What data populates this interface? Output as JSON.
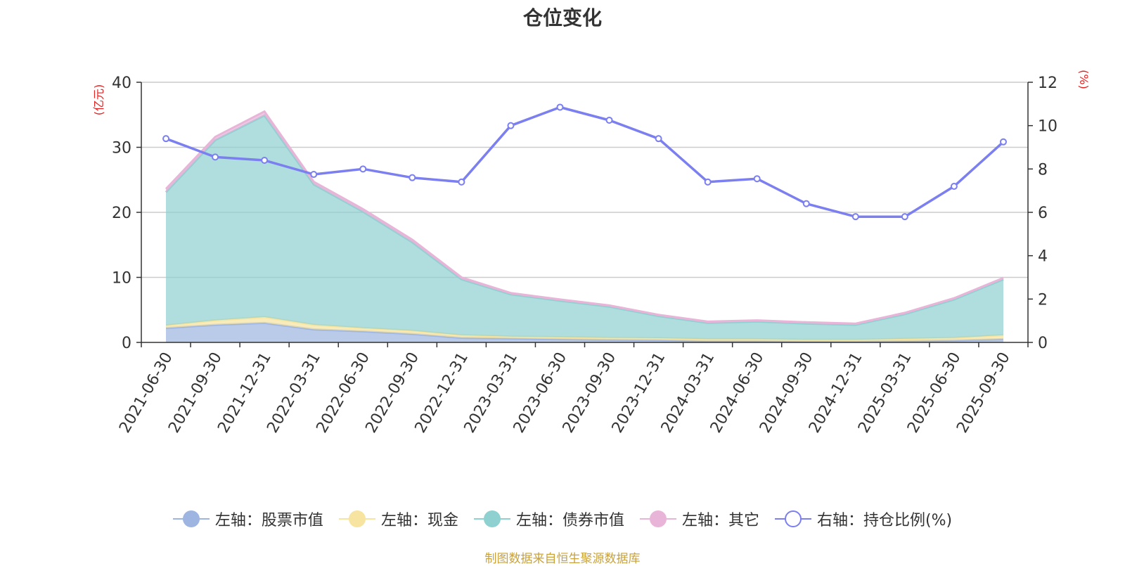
{
  "chart_data": {
    "type": "area",
    "title": "仓位变化",
    "categories": [
      "2021-06-30",
      "2021-09-30",
      "2021-12-31",
      "2022-03-31",
      "2022-06-30",
      "2022-09-30",
      "2022-12-31",
      "2023-03-31",
      "2023-06-30",
      "2023-09-30",
      "2023-12-31",
      "2024-03-31",
      "2024-06-30",
      "2024-09-30",
      "2024-12-31",
      "2025-03-31",
      "2025-06-30",
      "2025-09-30"
    ],
    "y_left": {
      "unit_label": "(亿元)",
      "ylim": [
        0,
        40
      ],
      "ticks": [
        "0",
        "10",
        "20",
        "30",
        "40"
      ]
    },
    "y_right": {
      "unit_label": "(%)",
      "ylim": [
        0,
        12
      ],
      "ticks": [
        "0",
        "2",
        "4",
        "6",
        "8",
        "10",
        "12"
      ]
    },
    "stacked": true,
    "series": [
      {
        "name": "左轴：股票市值",
        "axis": "left",
        "kind": "area",
        "color": "#9db5e0",
        "values": [
          2.2,
          2.7,
          3.0,
          2.0,
          1.7,
          1.3,
          0.7,
          0.6,
          0.5,
          0.4,
          0.35,
          0.2,
          0.2,
          0.15,
          0.15,
          0.2,
          0.3,
          0.5
        ]
      },
      {
        "name": "左轴：现金",
        "axis": "left",
        "kind": "area",
        "color": "#f7e4a0",
        "values": [
          0.4,
          0.7,
          0.9,
          0.7,
          0.5,
          0.5,
          0.4,
          0.3,
          0.3,
          0.3,
          0.3,
          0.3,
          0.3,
          0.25,
          0.25,
          0.35,
          0.4,
          0.6
        ]
      },
      {
        "name": "左轴：债券市值",
        "axis": "left",
        "kind": "area",
        "color": "#8fd0d0",
        "values": [
          20.5,
          27.7,
          31.0,
          21.6,
          17.9,
          13.6,
          8.6,
          6.5,
          5.6,
          4.8,
          3.4,
          2.5,
          2.7,
          2.5,
          2.3,
          3.8,
          5.9,
          8.6
        ]
      },
      {
        "name": "左轴：其它",
        "axis": "left",
        "kind": "area",
        "color": "#e8b4d8",
        "values": [
          0.5,
          0.5,
          0.6,
          0.4,
          0.4,
          0.4,
          0.3,
          0.2,
          0.2,
          0.2,
          0.2,
          0.2,
          0.2,
          0.2,
          0.2,
          0.2,
          0.2,
          0.2
        ]
      },
      {
        "name": "右轴：持仓比例(%)",
        "axis": "right",
        "kind": "line",
        "color": "#7b7ff0",
        "values": [
          9.4,
          8.55,
          8.4,
          7.75,
          8.0,
          7.6,
          7.4,
          10.0,
          10.85,
          10.25,
          9.4,
          7.4,
          7.55,
          6.4,
          5.8,
          5.8,
          7.2,
          9.25
        ]
      }
    ],
    "grid": true,
    "legend_position": "bottom"
  },
  "legend": [
    {
      "label": "左轴：股票市值",
      "color": "#9db5e0",
      "hollow": false
    },
    {
      "label": "左轴：现金",
      "color": "#f7e4a0",
      "hollow": false
    },
    {
      "label": "左轴：债券市值",
      "color": "#8fd0d0",
      "hollow": false
    },
    {
      "label": "左轴：其它",
      "color": "#e8b4d8",
      "hollow": false
    },
    {
      "label": "右轴：持仓比例(%)",
      "color": "#7b7ff0",
      "hollow": true
    }
  ],
  "source_note": "制图数据来自恒生聚源数据库"
}
